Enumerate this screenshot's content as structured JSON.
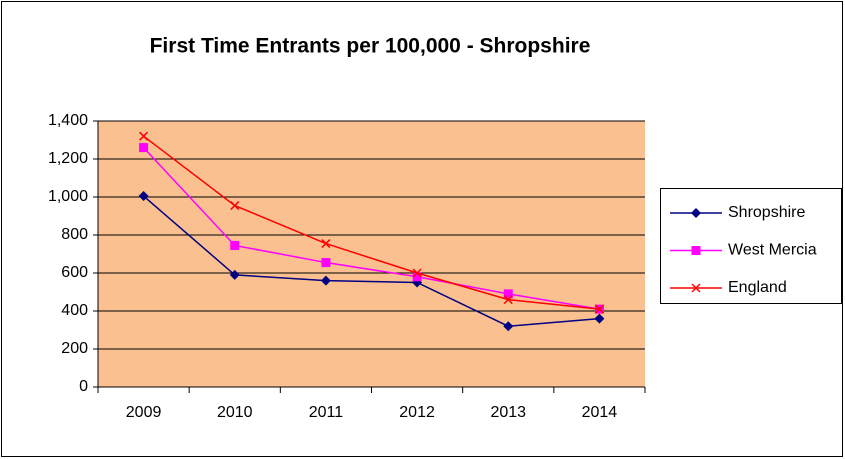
{
  "chart_data": {
    "type": "line",
    "title": "First Time Entrants per 100,000 - Shropshire",
    "categories": [
      "2009",
      "2010",
      "2011",
      "2012",
      "2013",
      "2014"
    ],
    "series": [
      {
        "name": "Shropshire",
        "color": "#000080",
        "marker": "diamond",
        "values": [
          1005,
          590,
          560,
          550,
          320,
          360
        ]
      },
      {
        "name": "West Mercia",
        "color": "#ff00ff",
        "marker": "square",
        "values": [
          1260,
          745,
          655,
          580,
          490,
          410
        ]
      },
      {
        "name": "England",
        "color": "#ff0000",
        "marker": "x",
        "values": [
          1320,
          955,
          755,
          600,
          460,
          410
        ]
      }
    ],
    "ylim": [
      0,
      1400
    ],
    "yticks": [
      0,
      200,
      400,
      600,
      800,
      {
        "value": 1000,
        "label": "1,000"
      },
      {
        "value": 1200,
        "label": "1,200"
      },
      {
        "value": 1400,
        "label": "1,400"
      }
    ],
    "grid": true,
    "legend": "right",
    "plot_background": "#fac090"
  }
}
